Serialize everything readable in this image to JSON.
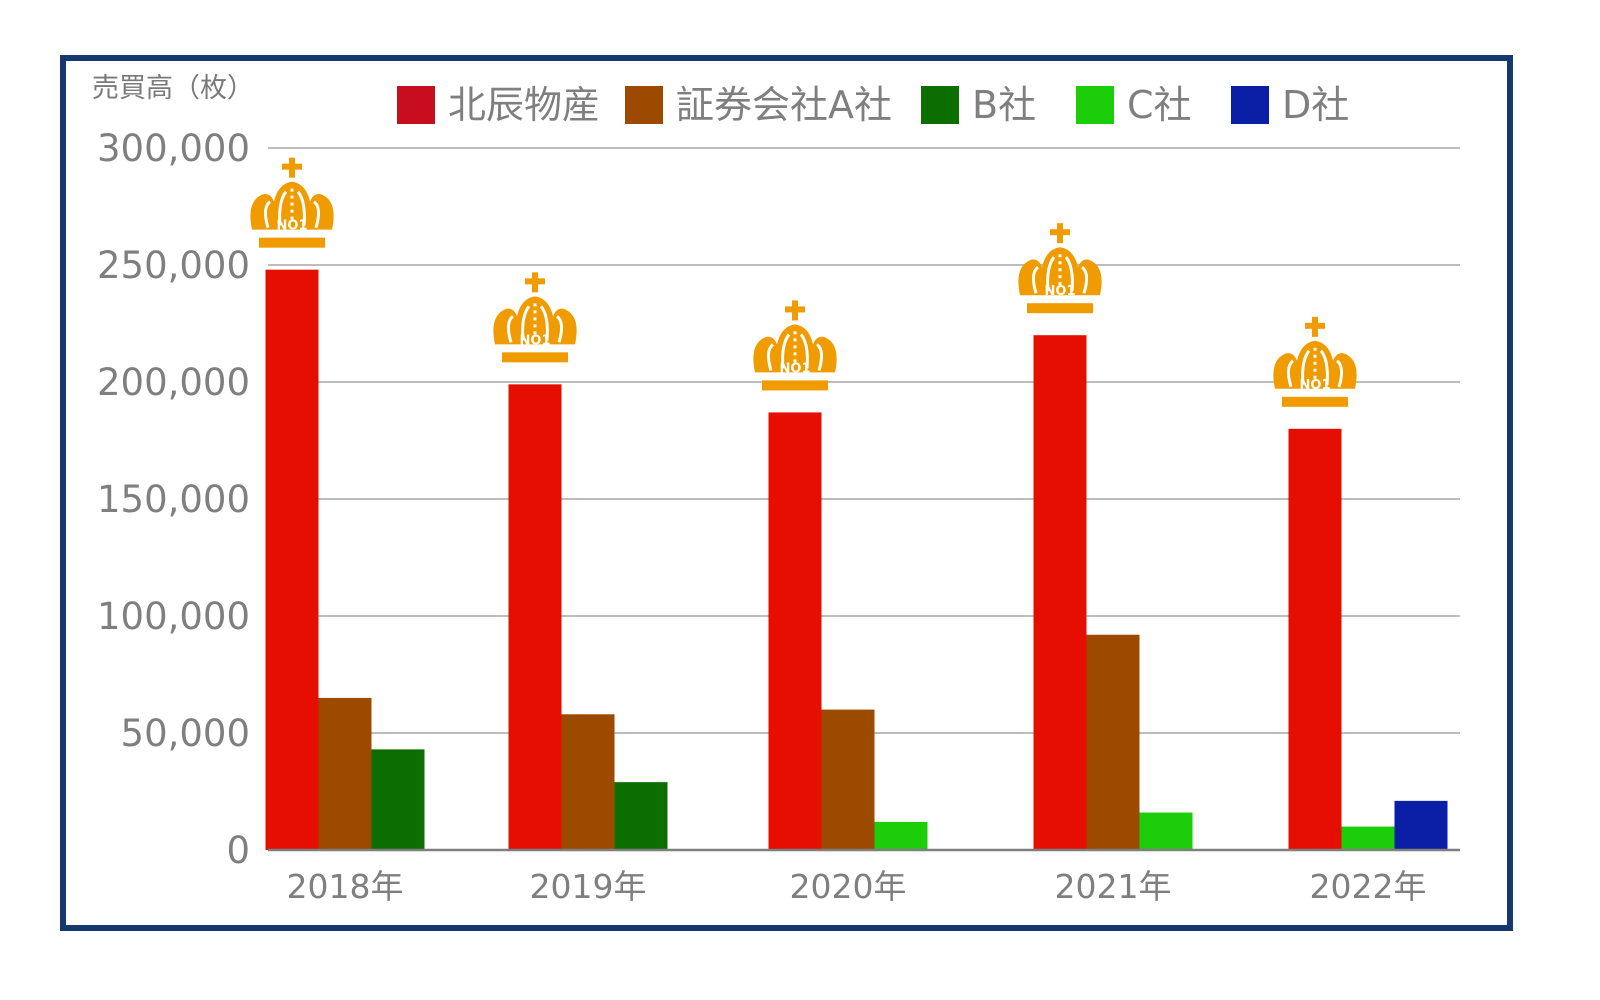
{
  "chart_data": {
    "type": "bar",
    "ylabel": "売買高（枚）",
    "ylim": [
      0,
      300000
    ],
    "yticks": [
      "300,000",
      "250,000",
      "200,000",
      "150,000",
      "100,000",
      "50,000",
      "0"
    ],
    "categories": [
      "2018年",
      "2019年",
      "2020年",
      "2021年",
      "2022年"
    ],
    "series": [
      {
        "name": "北辰物産",
        "color": "#e60e00",
        "values": [
          248000,
          199000,
          187000,
          220000,
          180000
        ]
      },
      {
        "name": "証券会社A社",
        "color": "#9b4a00",
        "values": [
          65000,
          58000,
          60000,
          92000,
          null
        ]
      },
      {
        "name": "B社",
        "color": "#0d6e00",
        "values": [
          43000,
          29000,
          null,
          null,
          null
        ]
      },
      {
        "name": "C社",
        "color": "#1ccd0a",
        "values": [
          null,
          null,
          12000,
          16000,
          10000
        ]
      },
      {
        "name": "D社",
        "color": "#0a1ea6",
        "values": [
          null,
          null,
          null,
          null,
          21000
        ]
      }
    ],
    "legend": {
      "position": "top",
      "swatch_color_first": "#c80e1e"
    },
    "grid": true,
    "annotations": {
      "crown_text": "NO1",
      "crown_color": "#f09b00",
      "crown_on_series": "北辰物産"
    }
  }
}
